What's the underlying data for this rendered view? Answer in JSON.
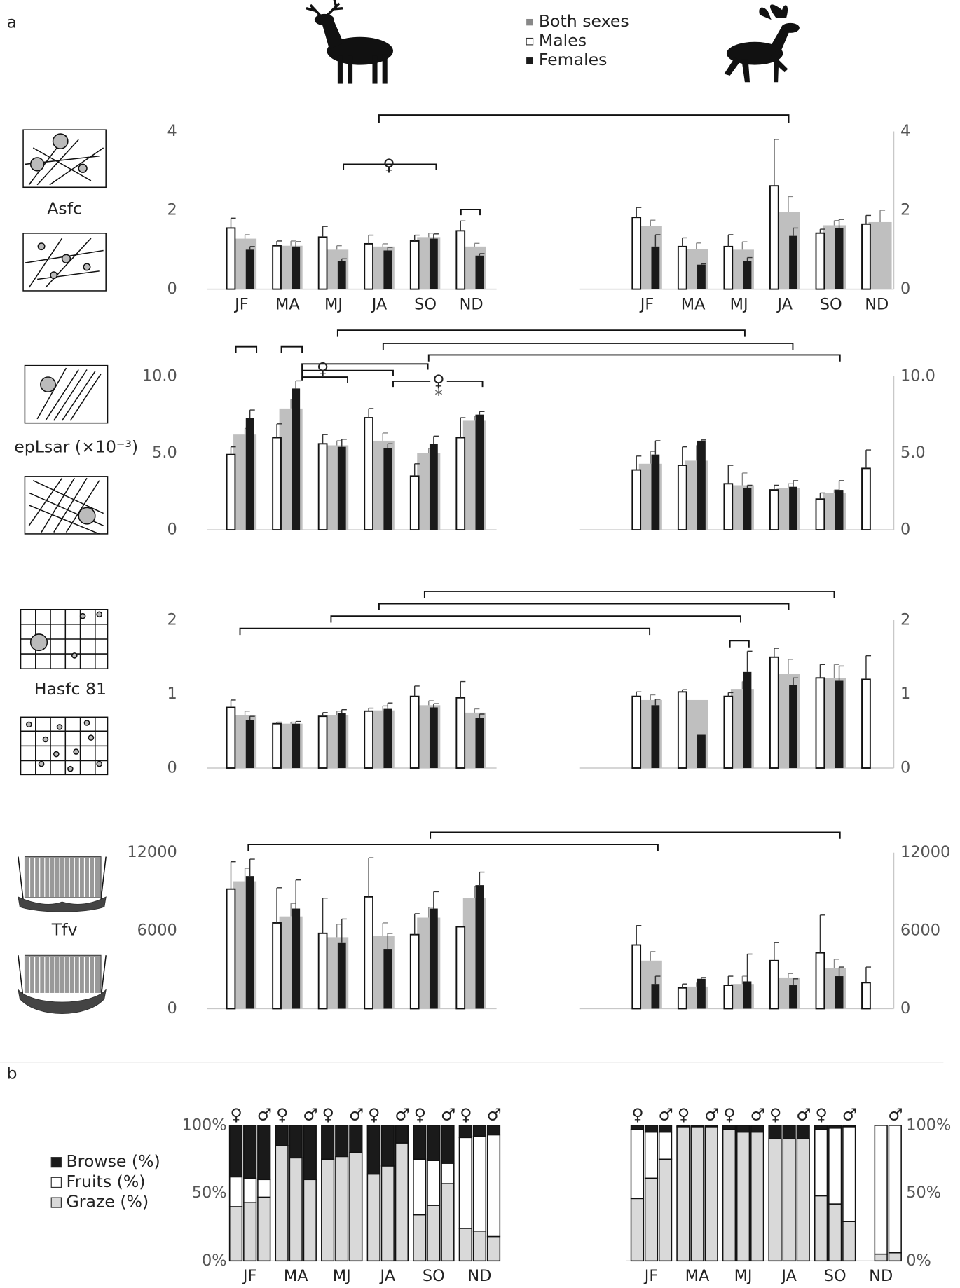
{
  "figure": {
    "panel_labels": [
      "a",
      "b"
    ],
    "row_labels": [
      "Asfc",
      "epLsar (×10⁻³)",
      "Hasfc 81",
      "Tfv"
    ],
    "annotations": [
      "♀",
      "♀",
      "♀",
      "*"
    ]
  },
  "chart_data": [
    {
      "type": "bar",
      "categories": [
        "JF",
        "MA",
        "MJ",
        "JA",
        "SO",
        "ND"
      ],
      "ylim": [
        0,
        4
      ],
      "yticks": [
        0,
        2,
        4
      ],
      "series": [
        {
          "name": "Both sexes",
          "color": "#bfbfbf",
          "values": [
            1.28,
            1.1,
            1.0,
            1.08,
            1.32,
            1.08
          ],
          "errors": [
            0.1,
            0.12,
            0.1,
            0.07,
            0.1,
            0.08
          ]
        },
        {
          "name": "Males",
          "color": "#ffffff",
          "values": [
            1.55,
            1.1,
            1.32,
            1.15,
            1.22,
            1.48
          ],
          "errors": [
            0.25,
            0.12,
            0.27,
            0.22,
            0.15,
            0.25
          ]
        },
        {
          "name": "Females",
          "color": "#1a1a1a",
          "values": [
            1.0,
            1.08,
            0.72,
            0.98,
            1.28,
            0.85
          ],
          "errors": [
            0.08,
            0.12,
            0.05,
            0.08,
            0.12,
            0.05
          ]
        }
      ]
    },
    {
      "type": "bar",
      "categories": [
        "JF",
        "MA",
        "MJ",
        "JA",
        "SO",
        "ND"
      ],
      "ylim": [
        0,
        4
      ],
      "yticks": [
        0,
        2,
        4
      ],
      "series": [
        {
          "color": "#bfbfbf",
          "values": [
            1.6,
            1.02,
            1.0,
            1.95,
            1.62,
            1.7
          ],
          "errors": [
            0.15,
            0.15,
            0.2,
            0.4,
            0.12,
            0.3
          ]
        },
        {
          "color": "#ffffff",
          "values": [
            1.82,
            1.08,
            1.08,
            2.62,
            1.42,
            1.65
          ],
          "errors": [
            0.25,
            0.22,
            0.3,
            1.18,
            0.1,
            0.22
          ]
        },
        {
          "color": "#1a1a1a",
          "values": [
            1.08,
            0.62,
            0.72,
            1.35,
            1.55,
            null
          ],
          "errors": [
            0.3,
            0.02,
            0.08,
            0.2,
            0.22,
            null
          ]
        }
      ]
    },
    {
      "type": "bar",
      "categories": [
        null,
        null,
        null,
        null,
        null,
        null
      ],
      "ylim": [
        0,
        10
      ],
      "yticks": [
        0,
        {
          "value": 5,
          "label": "5.0"
        },
        {
          "value": 10,
          "label": "10.0"
        }
      ],
      "series": [
        {
          "color": "#bfbfbf",
          "values": [
            6.2,
            7.9,
            5.5,
            5.8,
            5.0,
            7.1
          ],
          "errors": [
            0.4,
            0.6,
            0.3,
            0.5,
            0.3,
            0.3
          ]
        },
        {
          "color": "#ffffff",
          "values": [
            4.9,
            6.0,
            5.6,
            7.3,
            3.5,
            6.0
          ],
          "errors": [
            0.5,
            0.9,
            0.6,
            0.6,
            0.8,
            1.3
          ]
        },
        {
          "color": "#1a1a1a",
          "values": [
            7.3,
            9.2,
            5.4,
            5.3,
            5.6,
            7.5
          ],
          "errors": [
            0.5,
            0.5,
            0.5,
            0.3,
            0.5,
            0.2
          ]
        }
      ]
    },
    {
      "type": "bar",
      "categories": [
        null,
        null,
        null,
        null,
        null,
        null
      ],
      "ylim": [
        0,
        10
      ],
      "yticks": [
        0,
        {
          "value": 5,
          "label": "5.0"
        },
        {
          "value": 10,
          "label": "10.0"
        }
      ],
      "series": [
        {
          "color": "#bfbfbf",
          "values": [
            4.3,
            4.5,
            2.9,
            2.7,
            2.4,
            null
          ],
          "errors": [
            0.8,
            1.0,
            0.8,
            0.3,
            0.2,
            null
          ]
        },
        {
          "color": "#ffffff",
          "values": [
            3.9,
            4.2,
            3.0,
            2.6,
            2.0,
            4.0
          ],
          "errors": [
            0.9,
            1.2,
            1.2,
            0.3,
            0.4,
            1.2
          ]
        },
        {
          "color": "#1a1a1a",
          "values": [
            4.9,
            5.8,
            2.7,
            2.8,
            2.6,
            null
          ],
          "errors": [
            0.9,
            0.05,
            0.2,
            0.4,
            0.6,
            null
          ]
        }
      ]
    },
    {
      "type": "bar",
      "categories": [
        null,
        null,
        null,
        null,
        null,
        null
      ],
      "ylim": [
        0,
        2
      ],
      "yticks": [
        0,
        1,
        2
      ],
      "series": [
        {
          "color": "#bfbfbf",
          "values": [
            0.72,
            0.6,
            0.72,
            0.78,
            0.85,
            0.75
          ],
          "errors": [
            0.05,
            0.02,
            0.05,
            0.06,
            0.06,
            0.05
          ]
        },
        {
          "color": "#ffffff",
          "values": [
            0.82,
            0.6,
            0.7,
            0.77,
            0.97,
            0.95
          ],
          "errors": [
            0.1,
            0.02,
            0.05,
            0.04,
            0.14,
            0.22
          ]
        },
        {
          "color": "#1a1a1a",
          "values": [
            0.65,
            0.6,
            0.74,
            0.8,
            0.82,
            0.68
          ],
          "errors": [
            0.05,
            0.03,
            0.05,
            0.08,
            0.05,
            0.05
          ]
        }
      ]
    },
    {
      "type": "bar",
      "categories": [
        null,
        null,
        null,
        null,
        null,
        null
      ],
      "ylim": [
        0,
        2
      ],
      "yticks": [
        0,
        1,
        2
      ],
      "series": [
        {
          "color": "#bfbfbf",
          "values": [
            0.92,
            0.92,
            1.07,
            1.27,
            1.22,
            null
          ],
          "errors": [
            0.07,
            null,
            0.1,
            0.2,
            0.18,
            null
          ]
        },
        {
          "color": "#ffffff",
          "values": [
            0.97,
            1.03,
            0.97,
            1.5,
            1.22,
            1.2
          ],
          "errors": [
            0.06,
            0.03,
            0.05,
            0.12,
            0.18,
            0.32
          ]
        },
        {
          "color": "#1a1a1a",
          "values": [
            0.85,
            0.45,
            1.3,
            1.12,
            1.18,
            null
          ],
          "errors": [
            0.08,
            null,
            0.28,
            0.1,
            0.2,
            null
          ]
        }
      ]
    },
    {
      "type": "bar",
      "categories": [
        null,
        null,
        null,
        null,
        null,
        null
      ],
      "ylim": [
        0,
        12000
      ],
      "yticks": [
        0,
        6000,
        12000
      ],
      "series": [
        {
          "color": "#bfbfbf",
          "values": [
            9800,
            7100,
            5500,
            5600,
            7000,
            8500
          ],
          "errors": [
            1000,
            1000,
            1000,
            1000,
            800,
            900
          ]
        },
        {
          "color": "#ffffff",
          "values": [
            9200,
            6600,
            5800,
            8600,
            5700,
            6300
          ],
          "errors": [
            2100,
            2700,
            2700,
            3000,
            1600,
            null
          ]
        },
        {
          "color": "#1a1a1a",
          "values": [
            10200,
            7700,
            5100,
            4600,
            7700,
            9500
          ],
          "errors": [
            1300,
            2200,
            1800,
            1200,
            1300,
            1000
          ]
        }
      ]
    },
    {
      "type": "bar",
      "categories": [
        null,
        null,
        null,
        null,
        null,
        null
      ],
      "ylim": [
        0,
        12000
      ],
      "yticks": [
        0,
        6000,
        12000
      ],
      "series": [
        {
          "color": "#bfbfbf",
          "values": [
            3700,
            1700,
            1900,
            2400,
            3100,
            null
          ],
          "errors": [
            700,
            300,
            600,
            300,
            700,
            null
          ]
        },
        {
          "color": "#ffffff",
          "values": [
            4900,
            1600,
            1800,
            3700,
            4300,
            2000
          ],
          "errors": [
            1500,
            300,
            700,
            1400,
            2900,
            1200
          ]
        },
        {
          "color": "#1a1a1a",
          "values": [
            1900,
            2300,
            2100,
            1800,
            2500,
            null
          ],
          "errors": [
            600,
            100,
            2100,
            500,
            700,
            null
          ]
        }
      ]
    },
    {
      "type": "stacked_bar",
      "categories": [
        "JF",
        "MA",
        "MJ",
        "JA",
        "SO",
        "ND"
      ],
      "ylim": [
        0,
        100
      ],
      "yticks": [
        {
          "value": 0,
          "label": "0%"
        },
        {
          "value": 50,
          "label": "50%"
        },
        {
          "value": 100,
          "label": "100%"
        }
      ],
      "sex_labels": [
        "♀",
        "♂"
      ],
      "series": [
        {
          "name": "Browse (%)",
          "color": "#1a1a1a",
          "values": [
            [
              38,
              39,
              40
            ],
            [
              15,
              24,
              40
            ],
            [
              25,
              23,
              20
            ],
            [
              36,
              30,
              13
            ],
            [
              25,
              26,
              28
            ],
            [
              9,
              8,
              7
            ]
          ]
        },
        {
          "name": "Fruits (%)",
          "color": "#ffffff",
          "values": [
            [
              22,
              18,
              13
            ],
            [
              0,
              0,
              0
            ],
            [
              0,
              0,
              0
            ],
            [
              0,
              0,
              0
            ],
            [
              41,
              33,
              15
            ],
            [
              67,
              70,
              75
            ]
          ]
        },
        {
          "name": "Graze (%)",
          "color": "#d9d9d9",
          "values": [
            [
              40,
              43,
              47
            ],
            [
              85,
              76,
              60
            ],
            [
              75,
              77,
              80
            ],
            [
              64,
              70,
              87
            ],
            [
              34,
              41,
              57
            ],
            [
              24,
              22,
              18
            ]
          ]
        }
      ]
    },
    {
      "type": "stacked_bar",
      "categories": [
        "JF",
        "MA",
        "MJ",
        "JA",
        "SO",
        "ND"
      ],
      "ylim": [
        0,
        100
      ],
      "yticks": [
        {
          "value": 0,
          "label": "0%"
        },
        {
          "value": 50,
          "label": "50%"
        },
        {
          "value": 100,
          "label": "100%"
        }
      ],
      "sex_labels": [
        "♀",
        "♂"
      ],
      "series": [
        {
          "color": "#1a1a1a",
          "values": [
            [
              3,
              5,
              5
            ],
            [
              1,
              1,
              1
            ],
            [
              3,
              5,
              5
            ],
            [
              10,
              10,
              10
            ],
            [
              3,
              2,
              1
            ],
            [
              null,
              0,
              0
            ]
          ]
        },
        {
          "color": "#ffffff",
          "values": [
            [
              51,
              34,
              20
            ],
            [
              0,
              0,
              0
            ],
            [
              0,
              0,
              0
            ],
            [
              0,
              0,
              0
            ],
            [
              49,
              56,
              70
            ],
            [
              null,
              95,
              94
            ]
          ]
        },
        {
          "color": "#d9d9d9",
          "values": [
            [
              46,
              61,
              75
            ],
            [
              99,
              99,
              99
            ],
            [
              97,
              95,
              95
            ],
            [
              90,
              90,
              90
            ],
            [
              48,
              42,
              29
            ],
            [
              null,
              5,
              6
            ]
          ]
        }
      ]
    }
  ]
}
